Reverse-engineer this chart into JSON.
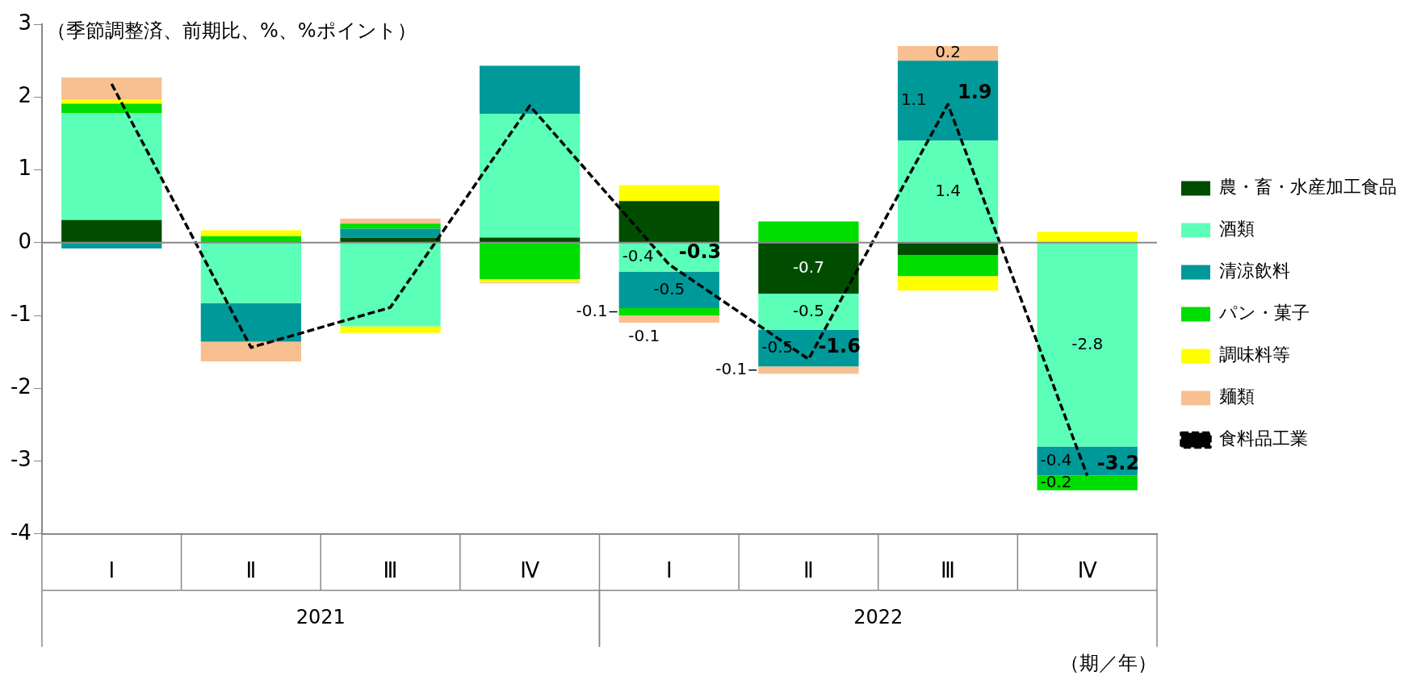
{
  "chart_data": {
    "type": "bar",
    "stacked": true,
    "ylabel": "（季節調整済、前期比、%、%ポイント）",
    "xlabel": "（期／年）",
    "categories": [
      "Ⅰ",
      "Ⅱ",
      "Ⅲ",
      "Ⅳ",
      "Ⅰ",
      "Ⅱ",
      "Ⅲ",
      "Ⅳ"
    ],
    "annotations": [
      "2021",
      "2022"
    ],
    "ylim": [
      -4,
      3
    ],
    "yticks": [
      -4,
      -3,
      -2,
      -1,
      0,
      1,
      2,
      3
    ],
    "grid": false,
    "legend": "right",
    "ref_lines": [
      {
        "axis": "y",
        "value": 0,
        "color": "#888888"
      }
    ],
    "series": [
      {
        "name": "農・畜・水産加工食品",
        "color": "#004d00",
        "values": [
          0.31,
          0,
          0.07,
          0.07,
          0.57,
          -0.7,
          -0.17,
          0
        ],
        "value_labels": [
          null,
          null,
          null,
          null,
          null,
          "-0.7",
          null,
          null
        ]
      },
      {
        "name": "酒類",
        "color": "#5cffb8",
        "values": [
          1.47,
          -0.83,
          -1.15,
          1.7,
          -0.4,
          -0.5,
          1.4,
          -2.8
        ],
        "value_labels": [
          null,
          null,
          null,
          null,
          "-0.4",
          "-0.5",
          "1.4",
          "-2.8"
        ]
      },
      {
        "name": "清涼飲料",
        "color": "#009999",
        "values": [
          -0.08,
          -0.53,
          0.12,
          0.66,
          -0.5,
          -0.5,
          1.1,
          -0.4
        ],
        "value_labels": [
          null,
          null,
          null,
          null,
          "-0.5",
          "-0.5",
          "1.1",
          "-0.4"
        ]
      },
      {
        "name": "パン・菓子",
        "color": "#00dd00",
        "values": [
          0.13,
          0.09,
          0.07,
          -0.5,
          -0.1,
          0.29,
          -0.29,
          -0.2
        ],
        "value_labels": [
          null,
          null,
          null,
          null,
          "-0.1",
          null,
          null,
          "-0.2"
        ]
      },
      {
        "name": "調味料等",
        "color": "#ffff00",
        "values": [
          0.05,
          0.08,
          -0.09,
          -0.04,
          0.22,
          0,
          -0.2,
          0.15
        ],
        "value_labels": [
          null,
          null,
          null,
          null,
          null,
          null,
          null,
          null
        ]
      },
      {
        "name": "麺類",
        "color": "#f8c090",
        "values": [
          0.31,
          -0.27,
          0.07,
          -0.02,
          -0.1,
          -0.1,
          0.2,
          0
        ],
        "value_labels": [
          null,
          null,
          null,
          null,
          "-0.1",
          "-0.1",
          "0.2",
          null
        ]
      },
      {
        "name": "食料品工業",
        "type": "line",
        "color": "#000000",
        "line_style": "dashed",
        "marker": "none",
        "values": [
          2.18,
          -1.44,
          -0.89,
          1.88,
          -0.3,
          -1.6,
          1.9,
          -3.2
        ],
        "value_labels": [
          null,
          null,
          null,
          null,
          "-0.3",
          "-1.6",
          "1.9",
          "-3.2"
        ]
      }
    ]
  }
}
